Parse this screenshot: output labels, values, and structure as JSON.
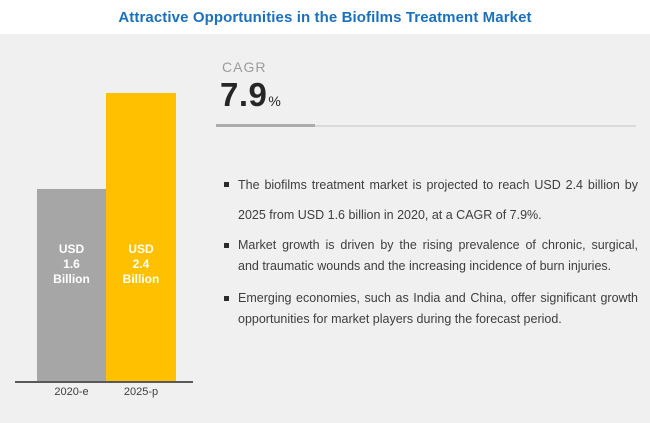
{
  "header": {
    "title": "Attractive Opportunities in the Biofilms Treatment Market"
  },
  "colors": {
    "title_blue": "#1B70BE",
    "background_gray": "#F0F0F0",
    "bar_gray": "#A6A6A6",
    "bar_yellow": "#FFC000",
    "axis_gray": "#595959",
    "divider_dark": "#ACACAC",
    "divider_light": "#DADADA"
  },
  "chart_data": {
    "type": "bar",
    "title": "Attractive Opportunities in the Biofilms Treatment Market",
    "categories": [
      "2020-e",
      "2025-p"
    ],
    "values": [
      1.6,
      2.4
    ],
    "unit": "USD Billion",
    "bar_value_labels": [
      [
        "USD",
        "1.6",
        "Billion"
      ],
      [
        "USD",
        "2.4",
        "Billion"
      ]
    ],
    "bar_colors": [
      "#A6A6A6",
      "#FFC000"
    ],
    "ylim": [
      0,
      2.6
    ],
    "grid": false,
    "legend": "none"
  },
  "cagr": {
    "label": "CAGR",
    "value": "7.9",
    "unit": "%"
  },
  "bullets": [
    {
      "text": "The biofilms treatment market is projected to reach USD 2.4 billion by 2025 from USD 1.6 billion in 2020, at a CAGR of 7.9%."
    },
    {
      "text": "Market growth is driven by the rising prevalence of chronic, surgical, and traumatic wounds and the increasing incidence of burn injuries."
    },
    {
      "text": "Emerging economies, such as India and China, offer significant growth opportunities for market players during the forecast period."
    }
  ]
}
